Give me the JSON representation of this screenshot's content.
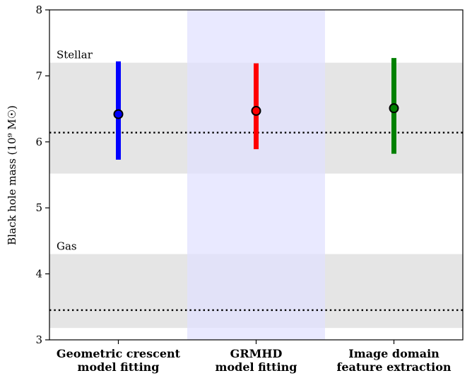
{
  "chart_data": {
    "type": "errorbar",
    "ylabel": "Black hole mass (10⁹ M☉)",
    "ylim": [
      3,
      8
    ],
    "yticks": [
      3,
      4,
      5,
      6,
      7,
      8
    ],
    "categories": [
      {
        "line1": "Geometric crescent",
        "line2": "model fitting"
      },
      {
        "line1": "GRMHD",
        "line2": "model fitting"
      },
      {
        "line1": "Image domain",
        "line2": "feature extraction"
      }
    ],
    "points": [
      {
        "value": 6.42,
        "low": 5.73,
        "high": 7.22,
        "color": "#0000ff"
      },
      {
        "value": 6.47,
        "low": 5.89,
        "high": 7.19,
        "color": "#ff0000"
      },
      {
        "value": 6.51,
        "low": 5.82,
        "high": 7.27,
        "color": "#008000"
      }
    ],
    "bands": [
      {
        "label": "Stellar",
        "low": 5.52,
        "high": 7.2,
        "line": 6.14,
        "color": "#e5e5e5"
      },
      {
        "label": "Gas",
        "low": 3.18,
        "high": 4.3,
        "line": 3.45,
        "color": "#e5e5e5"
      }
    ],
    "highlight_category_index": 1,
    "highlight_color": "#e0e0ff",
    "marker_color": "#000000"
  }
}
